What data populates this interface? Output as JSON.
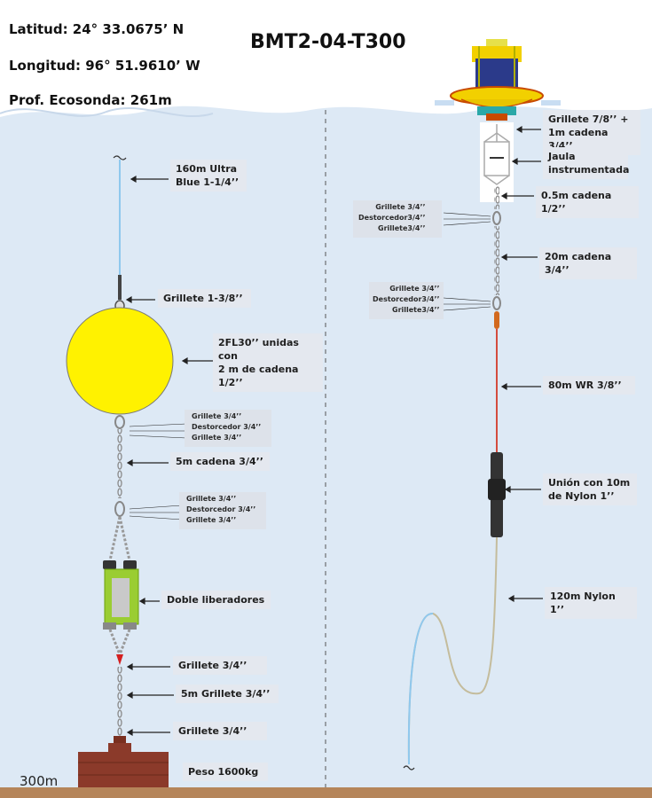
{
  "header": {
    "latitude": "Latitud: 24° 33.0675’ N",
    "longitude": "Longitud: 96° 51.9610’ W",
    "depth_sounder": "Prof. Ecosonda: 261m",
    "mooring_id": "BMT2-04-T300"
  },
  "seafloor_depth": "300m",
  "left_mooring": {
    "line": "160m Ultra\nBlue 1-1/4’’",
    "top_shackle": "Grillete 1-3/8’’",
    "float": "2FL30’’ unidas con\n2 m de cadena\n1/2’’",
    "hardware_1": "Grillete 3/4’’\nDestorcedor 3/4’’\nGrillete 3/4’’",
    "chain_1": "5m cadena 3/4’’",
    "hardware_2": "Grillete 3/4’’\nDestorcedor 3/4’’\nGrillete 3/4’’",
    "releases": "Doble liberadores",
    "shackle_1": "Grillete 3/4’’",
    "shackle_chain": "5m Grillete 3/4’’",
    "shackle_2": "Grillete 3/4’’",
    "anchor": "Peso 1600kg"
  },
  "right_mooring": {
    "buoy_connection": "Grillete 7/8’’ +\n1m cadena 3/4’’",
    "cage": "Jaula\ninstrumentada",
    "chain_short": "0.5m cadena 1/2’’",
    "hardware_1": "Grillete 3/4’’\nDestorcedor3/4’’\nGrillete3/4’’",
    "chain_long": "20m cadena 3/4’’",
    "hardware_2": "Grillete 3/4’’\nDestorcedor3/4’’\nGrillete3/4’’",
    "wire_rope": "80m WR 3/8’’",
    "joint": "Unión con 10m\nde Nylon 1’’",
    "nylon": "120m Nylon 1’’"
  },
  "colors": {
    "water": "#dde9f5",
    "float": "#fff200",
    "buoy_top": "#2b3a8a",
    "buoy_hull": "#f2d000",
    "release": "#9acd32",
    "anchor": "#8b3a2a",
    "seafloor": "#b5855a",
    "wire": "#d43a2a",
    "nylon": "#b8b090"
  }
}
